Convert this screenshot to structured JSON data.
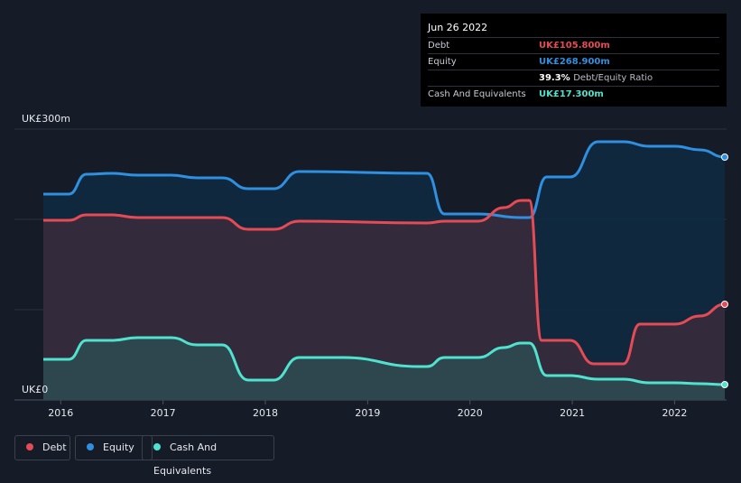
{
  "tooltip": {
    "date": "Jun 26 2022",
    "rows": [
      {
        "label": "Debt",
        "value": "UK£105.800m",
        "color": "#e64b55"
      },
      {
        "label": "Equity",
        "value": "UK£268.900m",
        "color": "#2f8fe0"
      },
      {
        "label": "",
        "value": "39.3%",
        "extra": "Debt/Equity Ratio"
      },
      {
        "label": "Cash And Equivalents",
        "value": "UK£17.300m",
        "color": "#4fe3cf"
      }
    ]
  },
  "legend": [
    {
      "label": "Debt",
      "color": "#e64b55"
    },
    {
      "label": "Equity",
      "color": "#2f8fe0"
    },
    {
      "label": "Cash And Equivalents",
      "color": "#4fe3cf"
    }
  ],
  "chart_data": {
    "type": "area",
    "y_top_label": "UK£300m",
    "y_bottom_label": "UK£0",
    "ylim": [
      0,
      300
    ],
    "xlim": [
      2015.83,
      2022.49
    ],
    "x_ticks": [
      "2016",
      "2017",
      "2018",
      "2019",
      "2020",
      "2021",
      "2022"
    ],
    "grid": true,
    "series": [
      {
        "name": "Equity",
        "color": "#2f8fe0",
        "points": [
          [
            2015.83,
            228
          ],
          [
            2016.08,
            228
          ],
          [
            2016.25,
            250
          ],
          [
            2016.5,
            251
          ],
          [
            2016.75,
            249
          ],
          [
            2017.08,
            249
          ],
          [
            2017.33,
            246
          ],
          [
            2017.58,
            246
          ],
          [
            2017.83,
            234
          ],
          [
            2018.08,
            234
          ],
          [
            2018.33,
            253
          ],
          [
            2019.58,
            251
          ],
          [
            2019.75,
            206
          ],
          [
            2020.08,
            206
          ],
          [
            2020.5,
            202
          ],
          [
            2020.58,
            202
          ],
          [
            2020.75,
            247
          ],
          [
            2020.98,
            247
          ],
          [
            2021.25,
            286
          ],
          [
            2021.5,
            286
          ],
          [
            2021.75,
            281
          ],
          [
            2022.0,
            281
          ],
          [
            2022.25,
            277
          ],
          [
            2022.49,
            269
          ]
        ]
      },
      {
        "name": "Debt",
        "color": "#e64b55",
        "points": [
          [
            2015.83,
            199
          ],
          [
            2016.08,
            199
          ],
          [
            2016.25,
            205
          ],
          [
            2016.5,
            205
          ],
          [
            2016.75,
            202
          ],
          [
            2017.58,
            202
          ],
          [
            2017.83,
            189
          ],
          [
            2018.08,
            189
          ],
          [
            2018.33,
            198
          ],
          [
            2019.58,
            196
          ],
          [
            2019.75,
            198
          ],
          [
            2020.08,
            198
          ],
          [
            2020.33,
            213
          ],
          [
            2020.5,
            221
          ],
          [
            2020.58,
            221
          ],
          [
            2020.7,
            66
          ],
          [
            2020.98,
            66
          ],
          [
            2021.21,
            40
          ],
          [
            2021.5,
            40
          ],
          [
            2021.66,
            84
          ],
          [
            2022.0,
            84
          ],
          [
            2022.25,
            93
          ],
          [
            2022.49,
            106
          ]
        ]
      },
      {
        "name": "Cash And Equivalents",
        "color": "#4fe3cf",
        "points": [
          [
            2015.83,
            45
          ],
          [
            2016.08,
            45
          ],
          [
            2016.25,
            66
          ],
          [
            2016.5,
            66
          ],
          [
            2016.75,
            69
          ],
          [
            2017.08,
            69
          ],
          [
            2017.33,
            61
          ],
          [
            2017.58,
            61
          ],
          [
            2017.83,
            22
          ],
          [
            2018.08,
            22
          ],
          [
            2018.33,
            47
          ],
          [
            2018.75,
            47
          ],
          [
            2019.5,
            37
          ],
          [
            2019.58,
            37
          ],
          [
            2019.75,
            47
          ],
          [
            2020.08,
            47
          ],
          [
            2020.33,
            58
          ],
          [
            2020.5,
            63
          ],
          [
            2020.58,
            63
          ],
          [
            2020.75,
            27
          ],
          [
            2020.98,
            27
          ],
          [
            2021.25,
            23
          ],
          [
            2021.5,
            23
          ],
          [
            2021.75,
            19
          ],
          [
            2022.0,
            19
          ],
          [
            2022.25,
            18
          ],
          [
            2022.49,
            17
          ]
        ]
      }
    ]
  }
}
